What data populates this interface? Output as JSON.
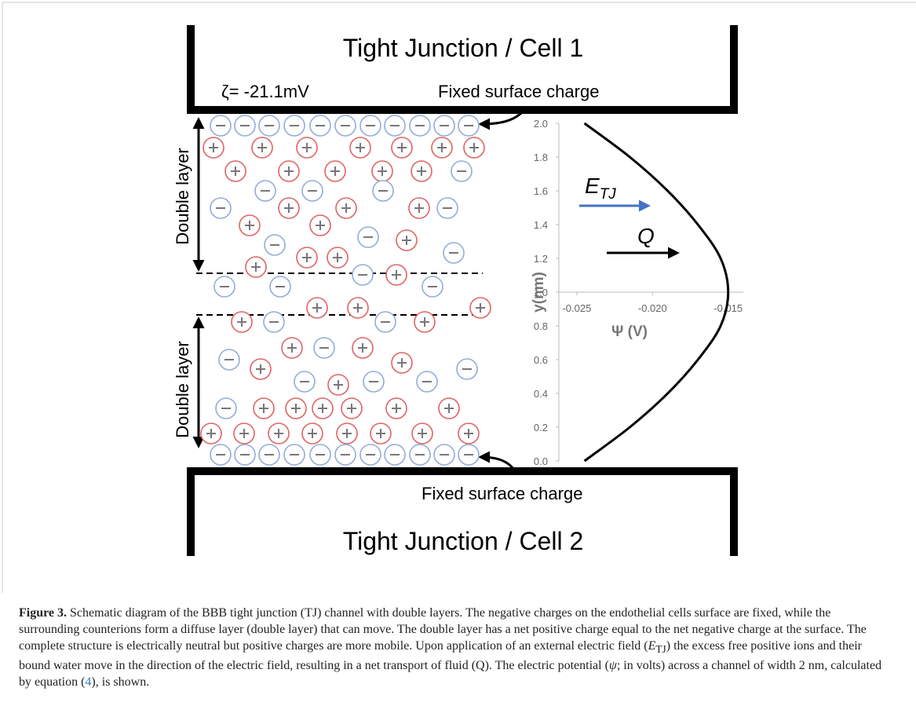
{
  "figure": {
    "top_label": "Tight Junction / Cell 1",
    "bottom_label": "Tight Junction / Cell 2",
    "zeta": "ζ= -21.1mV",
    "fixed_top": "Fixed surface charge",
    "fixed_bottom": "Fixed surface charge",
    "double_layer_top": "Double layer",
    "double_layer_bottom": "Double layer",
    "field_label": {
      "base": "E",
      "sub": "TJ"
    },
    "flow_label": "Q",
    "plot": {
      "type": "line",
      "ylabel": "y(nm)",
      "xlabel": "Ψ (V)",
      "xlim": [
        -0.0265,
        -0.014
      ],
      "ylim": [
        0,
        2
      ],
      "xticks": [
        -0.025,
        {
          "value": -0.02,
          "label": "-0.020"
        },
        -0.015
      ],
      "yticks": [
        {
          "value": 0,
          "label": "0.0"
        },
        0.2,
        0.4,
        0.6,
        0.8,
        {
          "value": 1,
          "label": "1.0"
        },
        1.2,
        1.4,
        1.6,
        1.8,
        {
          "value": 2,
          "label": "2.0"
        }
      ],
      "series": [
        {
          "color": "#000000",
          "x": [
            -0.0245,
            -0.0215,
            -0.019,
            -0.017,
            -0.0155,
            -0.015,
            -0.0155,
            -0.017,
            -0.019,
            -0.0215,
            -0.0245
          ],
          "values": [
            0,
            0.2,
            0.4,
            0.6,
            0.8,
            1.0,
            1.2,
            1.4,
            1.6,
            1.8,
            2.0
          ]
        }
      ]
    }
  },
  "caption": {
    "label": "Figure 3.",
    "parts": [
      " Schematic diagram of the BBB tight junction (TJ) channel with double layers. The negative charges on the endothelial cells surface are fixed, while the surrounding counterions form a diffuse layer (double layer) that can move. The double layer has a net positive charge equal to the net negative charge at the surface. The complete structure is electrically neutral but positive charges are more mobile. Upon application of an external electric field (",
      "E",
      "TJ",
      ") the excess free positive ions and their bound water move in the direction of the electric field, resulting in a net transport of fluid (Q). The electric potential (",
      "ψ",
      "; in volts) across a channel of width 2 nm, calculated by equation (",
      "4",
      "), is shown."
    ]
  }
}
